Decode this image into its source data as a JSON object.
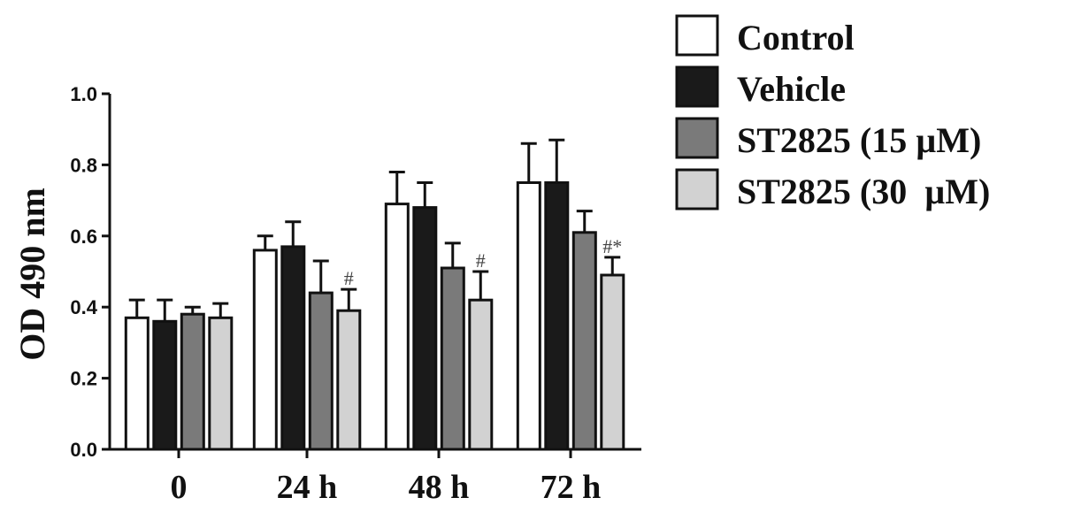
{
  "chart_data": {
    "type": "bar",
    "title": "",
    "xlabel": "",
    "ylabel": "OD 490 nm",
    "ylim": [
      0,
      1.0
    ],
    "yticks": [
      "0.0",
      "0.2",
      "0.4",
      "0.6",
      "0.8",
      "1.0"
    ],
    "categories": [
      "0",
      "24 h",
      "48 h",
      "72 h"
    ],
    "legend_position": "top-right",
    "grid": false,
    "series": [
      {
        "name": "Control",
        "color": "#ffffff",
        "values": [
          0.37,
          0.56,
          0.69,
          0.75
        ],
        "errors": [
          0.05,
          0.04,
          0.09,
          0.11
        ],
        "annotations": [
          "",
          "",
          "",
          ""
        ]
      },
      {
        "name": "Vehicle",
        "color": "#1a1a1a",
        "values": [
          0.36,
          0.57,
          0.68,
          0.75
        ],
        "errors": [
          0.06,
          0.07,
          0.07,
          0.12
        ],
        "annotations": [
          "",
          "",
          "",
          ""
        ]
      },
      {
        "name": "ST2825 (15 µM)",
        "color": "#7a7a7a",
        "values": [
          0.38,
          0.44,
          0.51,
          0.61
        ],
        "errors": [
          0.02,
          0.09,
          0.07,
          0.06
        ],
        "annotations": [
          "",
          "",
          "",
          ""
        ]
      },
      {
        "name": "ST2825 (30  µM)",
        "color": "#d2d2d2",
        "values": [
          0.37,
          0.39,
          0.42,
          0.49
        ],
        "errors": [
          0.04,
          0.06,
          0.08,
          0.05
        ],
        "annotations": [
          "",
          "#",
          "#",
          "#*"
        ]
      }
    ]
  }
}
